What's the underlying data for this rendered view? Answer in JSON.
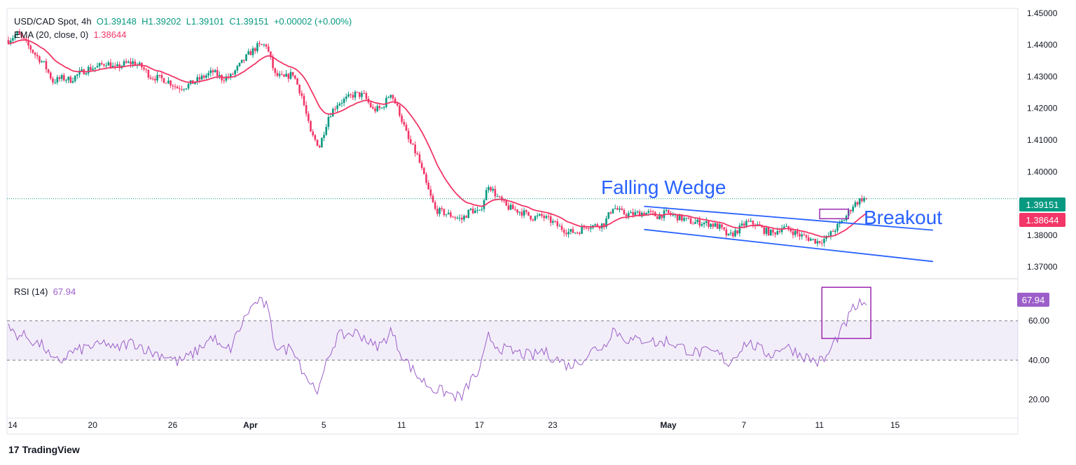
{
  "header": {
    "symbol": "USD/CAD Spot, 4h",
    "open": "O1.39148",
    "high": "H1.39202",
    "low": "L1.39101",
    "close": "C1.39151",
    "change": "+0.00002 (+0.00%)",
    "ema_label": "EMA (20, close, 0)",
    "ema_value": "1.38644"
  },
  "rsi_header": {
    "label": "RSI (14)",
    "value": "67.94"
  },
  "branding": {
    "logo": "17",
    "name": "TradingView"
  },
  "colors": {
    "up": "#089981",
    "down": "#f23667",
    "ema": "#f23667",
    "rsi": "#9c5fc9",
    "trend": "#2962ff",
    "box": "#9c27b0"
  },
  "chart_data": {
    "type": "candlestick",
    "price_axis": {
      "ticks": [
        "1.45000",
        "1.44000",
        "1.43000",
        "1.42000",
        "1.41000",
        "1.40000",
        "1.39000",
        "1.38000",
        "1.37000"
      ],
      "ylim": [
        1.3665,
        1.4515
      ]
    },
    "rsi_axis": {
      "ticks": [
        "60.00",
        "40.00",
        "20.00"
      ],
      "ylim": [
        12,
        81
      ],
      "band": [
        40,
        60
      ]
    },
    "x_ticks": [
      "14",
      "20",
      "26",
      "Apr",
      "5",
      "11",
      "17",
      "23",
      "May",
      "7",
      "11",
      "15"
    ],
    "last_price": "1.39151",
    "ema_last": "1.38644",
    "rsi_last": "67.94",
    "price_path": [
      [
        0,
        1.4415
      ],
      [
        4,
        1.4435
      ],
      [
        8,
        1.4405
      ],
      [
        12,
        1.437
      ],
      [
        16,
        1.434
      ],
      [
        20,
        1.4285
      ],
      [
        24,
        1.4295
      ],
      [
        28,
        1.429
      ],
      [
        32,
        1.431
      ],
      [
        36,
        1.4325
      ],
      [
        40,
        1.433
      ],
      [
        44,
        1.4345
      ],
      [
        48,
        1.4325
      ],
      [
        52,
        1.434
      ],
      [
        56,
        1.4345
      ],
      [
        60,
        1.433
      ],
      [
        64,
        1.43
      ],
      [
        68,
        1.4295
      ],
      [
        72,
        1.4285
      ],
      [
        76,
        1.4265
      ],
      [
        80,
        1.427
      ],
      [
        84,
        1.4285
      ],
      [
        88,
        1.43
      ],
      [
        92,
        1.4315
      ],
      [
        96,
        1.4295
      ],
      [
        100,
        1.43
      ],
      [
        104,
        1.4335
      ],
      [
        108,
        1.437
      ],
      [
        112,
        1.4395
      ],
      [
        116,
        1.44
      ],
      [
        120,
        1.4305
      ],
      [
        124,
        1.4295
      ],
      [
        128,
        1.431
      ],
      [
        132,
        1.424
      ],
      [
        136,
        1.412
      ],
      [
        140,
        1.408
      ],
      [
        144,
        1.4175
      ],
      [
        148,
        1.4215
      ],
      [
        152,
        1.423
      ],
      [
        156,
        1.4245
      ],
      [
        160,
        1.424
      ],
      [
        164,
        1.4195
      ],
      [
        168,
        1.42
      ],
      [
        172,
        1.425
      ],
      [
        176,
        1.4185
      ],
      [
        180,
        1.41
      ],
      [
        184,
        1.405
      ],
      [
        188,
        1.396
      ],
      [
        192,
        1.388
      ],
      [
        196,
        1.387
      ],
      [
        200,
        1.386
      ],
      [
        204,
        1.385
      ],
      [
        208,
        1.388
      ],
      [
        212,
        1.387
      ],
      [
        216,
        1.396
      ],
      [
        220,
        1.392
      ],
      [
        224,
        1.389
      ],
      [
        228,
        1.388
      ],
      [
        232,
        1.387
      ],
      [
        236,
        1.3855
      ],
      [
        240,
        1.386
      ],
      [
        244,
        1.3845
      ],
      [
        248,
        1.3825
      ],
      [
        252,
        1.381
      ],
      [
        256,
        1.381
      ],
      [
        260,
        1.383
      ],
      [
        264,
        1.383
      ],
      [
        268,
        1.3835
      ],
      [
        272,
        1.389
      ],
      [
        276,
        1.387
      ],
      [
        280,
        1.3865
      ],
      [
        284,
        1.387
      ],
      [
        288,
        1.387
      ],
      [
        292,
        1.386
      ],
      [
        296,
        1.387
      ],
      [
        300,
        1.386
      ],
      [
        304,
        1.385
      ],
      [
        308,
        1.384
      ],
      [
        312,
        1.384
      ],
      [
        316,
        1.3835
      ],
      [
        320,
        1.3825
      ],
      [
        324,
        1.3795
      ],
      [
        328,
        1.3815
      ],
      [
        332,
        1.384
      ],
      [
        336,
        1.3835
      ],
      [
        340,
        1.3815
      ],
      [
        344,
        1.3805
      ],
      [
        348,
        1.3825
      ],
      [
        352,
        1.3815
      ],
      [
        356,
        1.38
      ],
      [
        360,
        1.379
      ],
      [
        364,
        1.378
      ],
      [
        368,
        1.379
      ],
      [
        372,
        1.382
      ],
      [
        376,
        1.385
      ],
      [
        380,
        1.3895
      ],
      [
        384,
        1.3915
      ],
      [
        386,
        1.39151
      ]
    ],
    "rsi_path": [
      [
        0,
        56
      ],
      [
        4,
        53
      ],
      [
        8,
        52
      ],
      [
        12,
        49
      ],
      [
        16,
        47
      ],
      [
        20,
        39
      ],
      [
        24,
        40
      ],
      [
        28,
        44
      ],
      [
        32,
        45
      ],
      [
        36,
        47
      ],
      [
        40,
        47
      ],
      [
        44,
        49
      ],
      [
        48,
        45
      ],
      [
        52,
        48
      ],
      [
        56,
        49
      ],
      [
        60,
        47
      ],
      [
        64,
        44
      ],
      [
        68,
        43
      ],
      [
        72,
        42
      ],
      [
        76,
        39
      ],
      [
        80,
        41
      ],
      [
        84,
        44
      ],
      [
        88,
        48
      ],
      [
        92,
        52
      ],
      [
        96,
        45
      ],
      [
        100,
        46
      ],
      [
        104,
        56
      ],
      [
        108,
        65
      ],
      [
        112,
        70
      ],
      [
        116,
        68
      ],
      [
        120,
        48
      ],
      [
        124,
        45
      ],
      [
        128,
        47
      ],
      [
        132,
        36
      ],
      [
        136,
        28
      ],
      [
        140,
        25
      ],
      [
        144,
        42
      ],
      [
        148,
        52
      ],
      [
        152,
        53
      ],
      [
        156,
        54
      ],
      [
        160,
        52
      ],
      [
        164,
        47
      ],
      [
        168,
        48
      ],
      [
        172,
        55
      ],
      [
        176,
        45
      ],
      [
        180,
        38
      ],
      [
        184,
        32
      ],
      [
        188,
        28
      ],
      [
        192,
        25
      ],
      [
        196,
        24
      ],
      [
        200,
        22
      ],
      [
        204,
        21
      ],
      [
        208,
        30
      ],
      [
        212,
        34
      ],
      [
        216,
        52
      ],
      [
        220,
        47
      ],
      [
        224,
        45
      ],
      [
        228,
        44
      ],
      [
        232,
        43
      ],
      [
        236,
        42
      ],
      [
        240,
        45
      ],
      [
        244,
        42
      ],
      [
        248,
        40
      ],
      [
        252,
        37
      ],
      [
        256,
        39
      ],
      [
        260,
        42
      ],
      [
        264,
        46
      ],
      [
        268,
        47
      ],
      [
        272,
        56
      ],
      [
        276,
        52
      ],
      [
        280,
        50
      ],
      [
        284,
        50
      ],
      [
        288,
        51
      ],
      [
        292,
        48
      ],
      [
        296,
        50
      ],
      [
        300,
        48
      ],
      [
        304,
        46
      ],
      [
        308,
        44
      ],
      [
        312,
        44
      ],
      [
        316,
        44
      ],
      [
        320,
        43
      ],
      [
        324,
        38
      ],
      [
        328,
        44
      ],
      [
        332,
        49
      ],
      [
        336,
        47
      ],
      [
        340,
        44
      ],
      [
        344,
        43
      ],
      [
        348,
        47
      ],
      [
        352,
        46
      ],
      [
        356,
        43
      ],
      [
        360,
        41
      ],
      [
        364,
        39
      ],
      [
        368,
        41
      ],
      [
        372,
        50
      ],
      [
        376,
        57
      ],
      [
        380,
        66
      ],
      [
        384,
        69
      ],
      [
        386,
        67.94
      ]
    ],
    "annotations": [
      {
        "type": "text",
        "text": "Falling Wedge"
      },
      {
        "type": "text",
        "text": "Breakout"
      },
      {
        "type": "trendline",
        "name": "wedge-upper-line",
        "from": [
          286,
          1.3891
        ],
        "to": [
          416,
          1.3816
        ]
      },
      {
        "type": "trendline",
        "name": "wedge-lower-line",
        "from": [
          286,
          1.3818
        ],
        "to": [
          416,
          1.3717
        ]
      },
      {
        "type": "rect",
        "name": "breakout-box-price",
        "x": [
          365,
          378
        ],
        "y": [
          1.3852,
          1.3882
        ]
      },
      {
        "type": "rect",
        "name": "breakout-box-rsi",
        "x": [
          366,
          388
        ],
        "y": [
          51,
          77
        ]
      }
    ]
  }
}
